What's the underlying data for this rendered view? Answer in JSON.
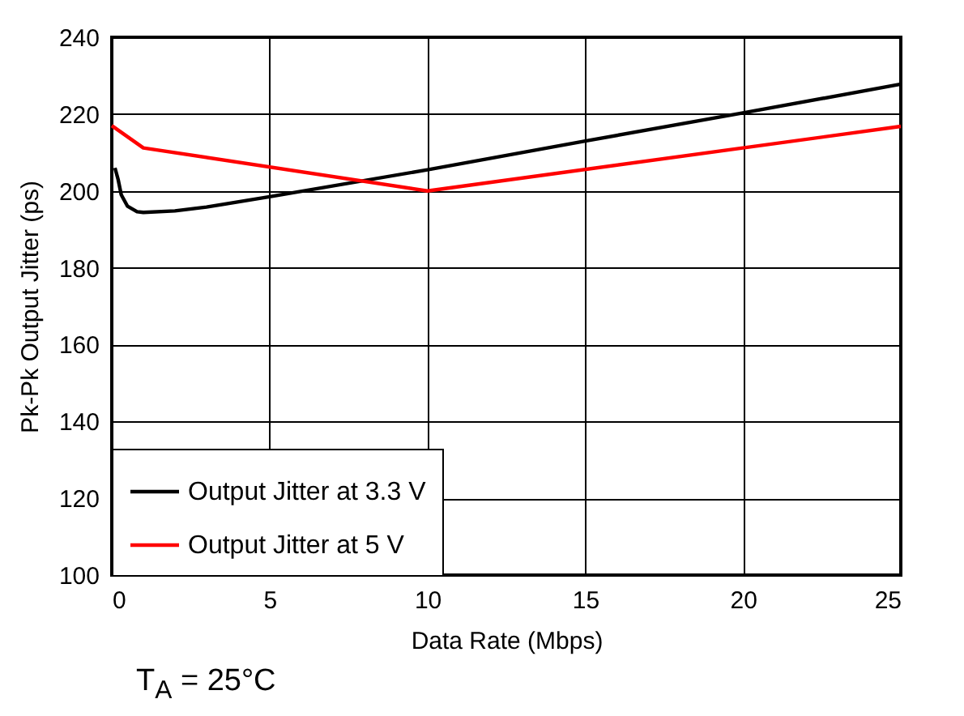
{
  "chart_data": {
    "type": "line",
    "xlabel": "Data Rate (Mbps)",
    "ylabel": "Pk-Pk Output Jitter (ps)",
    "annotations": [
      "T$_{A}$ = 25°C"
    ],
    "xlim": [
      0,
      25
    ],
    "xticks": [
      0,
      5,
      10,
      15,
      20,
      25
    ],
    "ylim": [
      100,
      240
    ],
    "yticks": [
      100,
      120,
      140,
      160,
      180,
      200,
      220,
      240
    ],
    "grid": true,
    "legend": "bottom left",
    "marker": "none",
    "line_style": "solid",
    "series": [
      {
        "name": "Output Jitter at 3.3 V",
        "color": "#000000",
        "x": [
          0.1,
          0.2,
          0.3,
          0.5,
          0.8,
          1,
          2,
          3,
          5,
          10,
          15,
          20,
          25
        ],
        "values": [
          206,
          203,
          199,
          196,
          194.6,
          194.4,
          194.8,
          195.8,
          198.5,
          205.5,
          213,
          220.3,
          227.8
        ]
      },
      {
        "name": "Output Jitter at 5 V",
        "color": "#ff0000",
        "x": [
          0,
          1,
          10,
          25
        ],
        "values": [
          217,
          211.2,
          200,
          216.8
        ]
      }
    ]
  }
}
